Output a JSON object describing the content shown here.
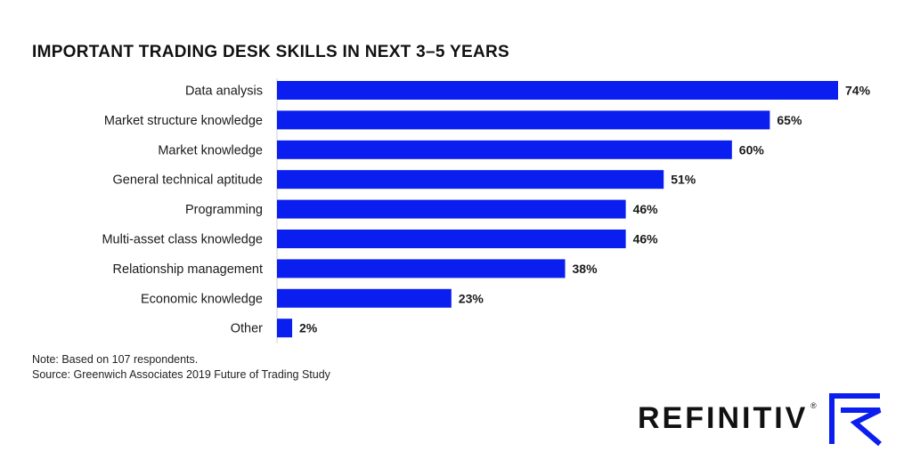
{
  "chart_data": {
    "type": "bar",
    "orientation": "horizontal",
    "title": "IMPORTANT TRADING DESK SKILLS IN NEXT 3–5 YEARS",
    "categories": [
      "Data analysis",
      "Market structure knowledge",
      "Market knowledge",
      "General technical aptitude",
      "Programming",
      "Multi-asset class knowledge",
      "Relationship management",
      "Economic knowledge",
      "Other"
    ],
    "values": [
      74,
      65,
      60,
      51,
      46,
      46,
      38,
      23,
      2
    ],
    "value_labels": [
      "74%",
      "65%",
      "60%",
      "51%",
      "46%",
      "46%",
      "38%",
      "23%",
      "2%"
    ],
    "unit": "%",
    "xlim": [
      0,
      74
    ],
    "xlabel": "",
    "ylabel": "",
    "grid": false,
    "bar_color": "#0a1ef0"
  },
  "notes": {
    "note": "Note: Based on 107 respondents.",
    "source": "Source: Greenwich Associates 2019 Future of Trading Study"
  },
  "brand": {
    "name": "REFINITIV",
    "registered_mark": "®",
    "mark_icon": "refinitiv-r-mark-icon",
    "mark_color": "#0a1ef0"
  }
}
